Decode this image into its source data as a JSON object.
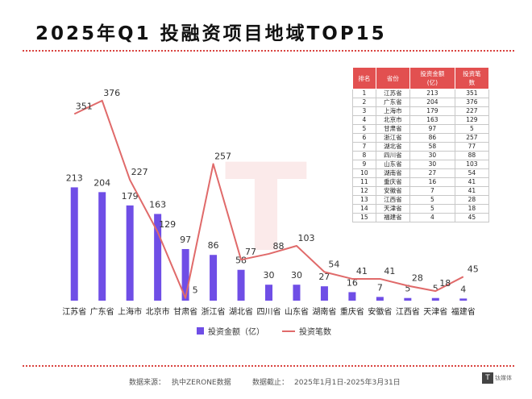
{
  "title": "2025年Q1  投融资项目地域TOP15",
  "legend": {
    "bar": "投资金额（亿）",
    "line": "投资笔数"
  },
  "footer": {
    "source_label": "数据来源：",
    "source_value": "执中ZERONE数据",
    "date_label": "数据截止：",
    "date_value": "2025年1月1日-2025年3月31日"
  },
  "brand": {
    "icon_text": "T",
    "name": "钛媒体"
  },
  "colors": {
    "bar": "#6f4ee6",
    "line": "#e06a6a",
    "accent": "#e25050"
  },
  "table": {
    "headers": [
      "排名",
      "省份",
      "投资金额\n(亿)",
      "投资笔\n数"
    ],
    "rows": [
      [
        "1",
        "江苏省",
        "213",
        "351"
      ],
      [
        "2",
        "广东省",
        "204",
        "376"
      ],
      [
        "3",
        "上海市",
        "179",
        "227"
      ],
      [
        "4",
        "北京市",
        "163",
        "129"
      ],
      [
        "5",
        "甘肃省",
        "97",
        "5"
      ],
      [
        "6",
        "浙江省",
        "86",
        "257"
      ],
      [
        "7",
        "湖北省",
        "58",
        "77"
      ],
      [
        "8",
        "四川省",
        "30",
        "88"
      ],
      [
        "9",
        "山东省",
        "30",
        "103"
      ],
      [
        "10",
        "湖南省",
        "27",
        "54"
      ],
      [
        "11",
        "重庆省",
        "16",
        "41"
      ],
      [
        "12",
        "安徽省",
        "7",
        "41"
      ],
      [
        "13",
        "江西省",
        "5",
        "28"
      ],
      [
        "14",
        "天津省",
        "5",
        "18"
      ],
      [
        "15",
        "福建省",
        "4",
        "45"
      ]
    ]
  },
  "chart_data": {
    "type": "bar",
    "categories": [
      "江苏省",
      "广东省",
      "上海市",
      "北京市",
      "甘肃省",
      "浙江省",
      "湖北省",
      "四川省",
      "山东省",
      "湖南省",
      "重庆省",
      "安徽省",
      "江西省",
      "天津省",
      "福建省"
    ],
    "series": [
      {
        "name": "投资金额（亿）",
        "type": "bar",
        "values": [
          213,
          204,
          179,
          163,
          97,
          86,
          58,
          30,
          30,
          27,
          16,
          7,
          5,
          5,
          4
        ]
      },
      {
        "name": "投资笔数",
        "type": "line",
        "values": [
          351,
          376,
          227,
          129,
          5,
          257,
          77,
          88,
          103,
          54,
          41,
          41,
          28,
          18,
          45
        ]
      }
    ],
    "bar_ylim": [
      0,
      400
    ],
    "line_ylim": [
      0,
      400
    ],
    "grid": false,
    "legend_position": "bottom"
  }
}
